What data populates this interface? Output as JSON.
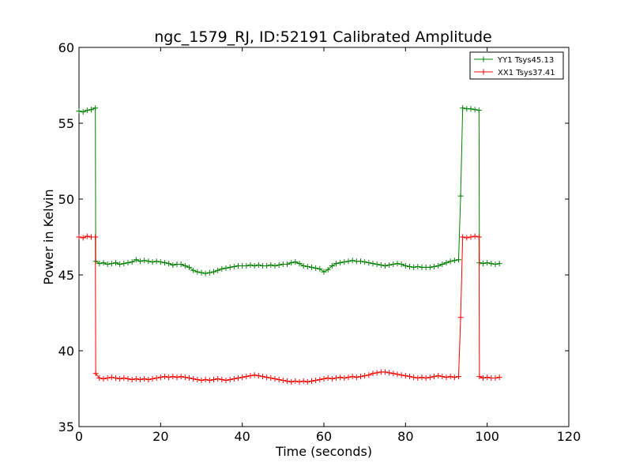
{
  "chart_data": {
    "type": "line",
    "title": "ngc_1579_RJ, ID:52191 Calibrated Amplitude",
    "xlabel": "Time (seconds)",
    "ylabel": "Power in Kelvin",
    "xlim": [
      0,
      120
    ],
    "ylim": [
      35,
      60
    ],
    "xticks": [
      0,
      20,
      40,
      60,
      80,
      100,
      120
    ],
    "yticks": [
      35,
      40,
      45,
      50,
      55,
      60
    ],
    "grid": false,
    "legend_position": "top-right",
    "marker": "plus",
    "series": [
      {
        "name": "YY1 Tsys45.13",
        "color": "#008000",
        "points": [
          [
            0.0,
            55.8
          ],
          [
            1.0,
            55.75
          ],
          [
            2.0,
            55.85
          ],
          [
            3.0,
            55.9
          ],
          [
            4.0,
            56.0
          ],
          [
            4.1,
            45.9
          ],
          [
            5.0,
            45.75
          ],
          [
            6.0,
            45.8
          ],
          [
            7.0,
            45.7
          ],
          [
            8.0,
            45.75
          ],
          [
            9.0,
            45.8
          ],
          [
            10.0,
            45.7
          ],
          [
            11.0,
            45.75
          ],
          [
            12.0,
            45.8
          ],
          [
            13.0,
            45.85
          ],
          [
            14.0,
            46.0
          ],
          [
            15.0,
            45.9
          ],
          [
            16.0,
            45.95
          ],
          [
            17.0,
            45.9
          ],
          [
            18.0,
            45.85
          ],
          [
            19.0,
            45.9
          ],
          [
            20.0,
            45.85
          ],
          [
            21.0,
            45.8
          ],
          [
            22.0,
            45.75
          ],
          [
            23.0,
            45.65
          ],
          [
            24.0,
            45.7
          ],
          [
            25.0,
            45.7
          ],
          [
            26.0,
            45.6
          ],
          [
            27.0,
            45.5
          ],
          [
            28.0,
            45.3
          ],
          [
            29.0,
            45.2
          ],
          [
            30.0,
            45.15
          ],
          [
            31.0,
            45.1
          ],
          [
            32.0,
            45.15
          ],
          [
            33.0,
            45.2
          ],
          [
            34.0,
            45.3
          ],
          [
            35.0,
            45.4
          ],
          [
            36.0,
            45.45
          ],
          [
            37.0,
            45.5
          ],
          [
            38.0,
            45.55
          ],
          [
            39.0,
            45.6
          ],
          [
            40.0,
            45.6
          ],
          [
            41.0,
            45.6
          ],
          [
            42.0,
            45.65
          ],
          [
            43.0,
            45.6
          ],
          [
            44.0,
            45.65
          ],
          [
            45.0,
            45.6
          ],
          [
            46.0,
            45.6
          ],
          [
            47.0,
            45.65
          ],
          [
            48.0,
            45.6
          ],
          [
            49.0,
            45.65
          ],
          [
            50.0,
            45.7
          ],
          [
            51.0,
            45.7
          ],
          [
            52.0,
            45.8
          ],
          [
            53.0,
            45.85
          ],
          [
            54.0,
            45.75
          ],
          [
            55.0,
            45.6
          ],
          [
            56.0,
            45.55
          ],
          [
            57.0,
            45.5
          ],
          [
            58.0,
            45.45
          ],
          [
            59.0,
            45.4
          ],
          [
            60.0,
            45.2
          ],
          [
            61.0,
            45.35
          ],
          [
            62.0,
            45.6
          ],
          [
            63.0,
            45.75
          ],
          [
            64.0,
            45.8
          ],
          [
            65.0,
            45.85
          ],
          [
            66.0,
            45.9
          ],
          [
            67.0,
            45.95
          ],
          [
            68.0,
            45.9
          ],
          [
            69.0,
            45.9
          ],
          [
            70.0,
            45.85
          ],
          [
            71.0,
            45.8
          ],
          [
            72.0,
            45.75
          ],
          [
            73.0,
            45.7
          ],
          [
            74.0,
            45.65
          ],
          [
            75.0,
            45.6
          ],
          [
            76.0,
            45.65
          ],
          [
            77.0,
            45.7
          ],
          [
            78.0,
            45.75
          ],
          [
            79.0,
            45.7
          ],
          [
            80.0,
            45.6
          ],
          [
            81.0,
            45.55
          ],
          [
            82.0,
            45.5
          ],
          [
            83.0,
            45.55
          ],
          [
            84.0,
            45.5
          ],
          [
            85.0,
            45.5
          ],
          [
            86.0,
            45.5
          ],
          [
            87.0,
            45.55
          ],
          [
            88.0,
            45.6
          ],
          [
            89.0,
            45.7
          ],
          [
            90.0,
            45.8
          ],
          [
            91.0,
            45.9
          ],
          [
            92.0,
            45.95
          ],
          [
            93.0,
            46.0
          ],
          [
            93.5,
            50.2
          ],
          [
            94.0,
            56.0
          ],
          [
            95.0,
            55.95
          ],
          [
            96.0,
            55.95
          ],
          [
            97.0,
            55.9
          ],
          [
            98.0,
            55.85
          ],
          [
            98.1,
            45.8
          ],
          [
            99.0,
            45.75
          ],
          [
            100.0,
            45.8
          ],
          [
            101.0,
            45.75
          ],
          [
            102.0,
            45.7
          ],
          [
            103.0,
            45.75
          ]
        ]
      },
      {
        "name": "XX1 Tsys37.41",
        "color": "#ff0000",
        "points": [
          [
            0.0,
            47.5
          ],
          [
            1.0,
            47.45
          ],
          [
            2.0,
            47.55
          ],
          [
            3.0,
            47.5
          ],
          [
            4.0,
            47.5
          ],
          [
            4.1,
            38.5
          ],
          [
            5.0,
            38.2
          ],
          [
            6.0,
            38.15
          ],
          [
            7.0,
            38.2
          ],
          [
            8.0,
            38.25
          ],
          [
            9.0,
            38.2
          ],
          [
            10.0,
            38.15
          ],
          [
            11.0,
            38.2
          ],
          [
            12.0,
            38.15
          ],
          [
            13.0,
            38.1
          ],
          [
            14.0,
            38.15
          ],
          [
            15.0,
            38.1
          ],
          [
            16.0,
            38.15
          ],
          [
            17.0,
            38.1
          ],
          [
            18.0,
            38.15
          ],
          [
            19.0,
            38.2
          ],
          [
            20.0,
            38.25
          ],
          [
            21.0,
            38.3
          ],
          [
            22.0,
            38.25
          ],
          [
            23.0,
            38.3
          ],
          [
            24.0,
            38.25
          ],
          [
            25.0,
            38.3
          ],
          [
            26.0,
            38.25
          ],
          [
            27.0,
            38.2
          ],
          [
            28.0,
            38.15
          ],
          [
            29.0,
            38.1
          ],
          [
            30.0,
            38.05
          ],
          [
            31.0,
            38.1
          ],
          [
            32.0,
            38.05
          ],
          [
            33.0,
            38.1
          ],
          [
            34.0,
            38.15
          ],
          [
            35.0,
            38.1
          ],
          [
            36.0,
            38.05
          ],
          [
            37.0,
            38.1
          ],
          [
            38.0,
            38.15
          ],
          [
            39.0,
            38.2
          ],
          [
            40.0,
            38.25
          ],
          [
            41.0,
            38.3
          ],
          [
            42.0,
            38.35
          ],
          [
            43.0,
            38.4
          ],
          [
            44.0,
            38.35
          ],
          [
            45.0,
            38.3
          ],
          [
            46.0,
            38.25
          ],
          [
            47.0,
            38.2
          ],
          [
            48.0,
            38.15
          ],
          [
            49.0,
            38.1
          ],
          [
            50.0,
            38.05
          ],
          [
            51.0,
            38.0
          ],
          [
            52.0,
            37.95
          ],
          [
            53.0,
            38.0
          ],
          [
            54.0,
            37.95
          ],
          [
            55.0,
            38.0
          ],
          [
            56.0,
            37.95
          ],
          [
            57.0,
            38.0
          ],
          [
            58.0,
            38.05
          ],
          [
            59.0,
            38.1
          ],
          [
            60.0,
            38.15
          ],
          [
            61.0,
            38.2
          ],
          [
            62.0,
            38.15
          ],
          [
            63.0,
            38.2
          ],
          [
            64.0,
            38.25
          ],
          [
            65.0,
            38.2
          ],
          [
            66.0,
            38.25
          ],
          [
            67.0,
            38.3
          ],
          [
            68.0,
            38.25
          ],
          [
            69.0,
            38.3
          ],
          [
            70.0,
            38.35
          ],
          [
            71.0,
            38.4
          ],
          [
            72.0,
            38.5
          ],
          [
            73.0,
            38.55
          ],
          [
            74.0,
            38.6
          ],
          [
            75.0,
            38.6
          ],
          [
            76.0,
            38.55
          ],
          [
            77.0,
            38.5
          ],
          [
            78.0,
            38.45
          ],
          [
            79.0,
            38.4
          ],
          [
            80.0,
            38.35
          ],
          [
            81.0,
            38.3
          ],
          [
            82.0,
            38.25
          ],
          [
            83.0,
            38.2
          ],
          [
            84.0,
            38.25
          ],
          [
            85.0,
            38.2
          ],
          [
            86.0,
            38.25
          ],
          [
            87.0,
            38.3
          ],
          [
            88.0,
            38.35
          ],
          [
            89.0,
            38.3
          ],
          [
            90.0,
            38.25
          ],
          [
            91.0,
            38.3
          ],
          [
            92.0,
            38.25
          ],
          [
            93.0,
            38.3
          ],
          [
            93.5,
            42.2
          ],
          [
            94.0,
            47.5
          ],
          [
            95.0,
            47.45
          ],
          [
            96.0,
            47.5
          ],
          [
            97.0,
            47.55
          ],
          [
            98.0,
            47.5
          ],
          [
            98.1,
            38.3
          ],
          [
            99.0,
            38.2
          ],
          [
            100.0,
            38.25
          ],
          [
            101.0,
            38.2
          ],
          [
            102.0,
            38.2
          ],
          [
            103.0,
            38.25
          ]
        ]
      }
    ]
  }
}
